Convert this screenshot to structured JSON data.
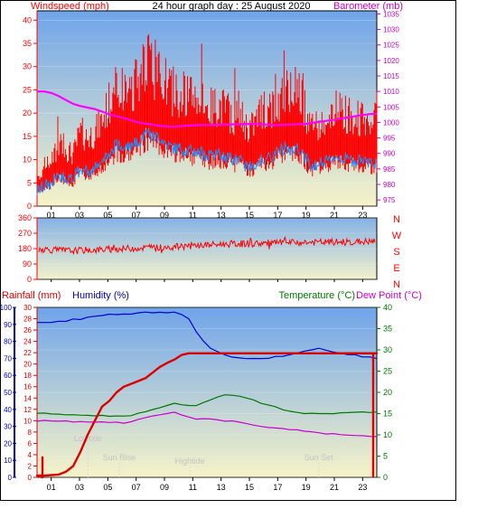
{
  "header": {
    "title": "24 hour graph day : 25 August 2020",
    "left_label": "Windspeed (mph)",
    "right_label": "Barometer (mb)"
  },
  "colors": {
    "wind": "#ff0000",
    "gust_avg": "#1e90ff",
    "barometer": "#ff00ff",
    "rain": "#dd0000",
    "humidity": "#0000cc",
    "temperature": "#007700",
    "dewpoint": "#cc00cc",
    "bg_top": "#6fa4ea",
    "bg_bottom": "#f6f3c8"
  },
  "chart_data": [
    {
      "type": "line",
      "name": "wind-barometer",
      "x_ticks": [
        "01",
        "03",
        "05",
        "07",
        "09",
        "11",
        "13",
        "15",
        "17",
        "19",
        "21",
        "23"
      ],
      "ylabel": "Windspeed (mph)",
      "ylim": [
        0,
        42
      ],
      "y_ticks": [
        0,
        5,
        10,
        15,
        20,
        25,
        30,
        35,
        40
      ],
      "y2label": "Barometer (mb)",
      "y2lim": [
        973,
        1036
      ],
      "y2_ticks": [
        975,
        980,
        985,
        990,
        995,
        1000,
        1005,
        1010,
        1015,
        1020,
        1025,
        1030,
        1035
      ],
      "series": [
        {
          "name": "Windspeed",
          "values": [
            5,
            7,
            8,
            11,
            10,
            9,
            13,
            12,
            13,
            15,
            18,
            21,
            20,
            21,
            22,
            26,
            24,
            24,
            21,
            20,
            20,
            19,
            19,
            18,
            17,
            18,
            17,
            16,
            16,
            14,
            14,
            17,
            16,
            18,
            20,
            20,
            21,
            17,
            14,
            15,
            15,
            17,
            17,
            16,
            16,
            15,
            15,
            15
          ]
        },
        {
          "name": "Barometer",
          "values": [
            1010,
            1010,
            1009.5,
            1008.5,
            1007.2,
            1006,
            1005.3,
            1004.8,
            1004.3,
            1003.5,
            1002.6,
            1002,
            1001.4,
            1000.7,
            1000,
            999.6,
            999.3,
            998.8,
            998.7,
            998.6,
            998.8,
            999,
            999.1,
            999.2,
            999.2,
            999.2,
            999.3,
            999.4,
            999.4,
            999.5,
            999.5,
            999.4,
            999.3,
            999.1,
            999.2,
            999.3,
            999.4,
            999.5,
            999.8,
            1000.2,
            1000.5,
            1000.8,
            1001.2,
            1001.6,
            1002,
            1002.4,
            1002.7,
            1002.8
          ]
        }
      ]
    },
    {
      "type": "line",
      "name": "wind-direction",
      "x_ticks": [
        "01",
        "03",
        "05",
        "07",
        "09",
        "11",
        "13",
        "15",
        "17",
        "19",
        "21",
        "23"
      ],
      "ylim": [
        0,
        360
      ],
      "y_ticks": [
        0,
        90,
        180,
        270,
        360
      ],
      "direction_labels": [
        "N",
        "W",
        "S",
        "E",
        "N"
      ],
      "series": [
        {
          "name": "Direction",
          "values": [
            178,
            176,
            172,
            170,
            168,
            168,
            170,
            172,
            172,
            174,
            176,
            178,
            180,
            182,
            184,
            184,
            185,
            186,
            188,
            190,
            192,
            195,
            198,
            200,
            202,
            204,
            206,
            207,
            208,
            209,
            210,
            211,
            212,
            213,
            214,
            215,
            215,
            216,
            216,
            217,
            217,
            218,
            218,
            219,
            219,
            220,
            220,
            220
          ]
        }
      ]
    },
    {
      "type": "line",
      "name": "rain-humidity-temperature",
      "x_ticks": [
        "01",
        "03",
        "05",
        "07",
        "09",
        "11",
        "13",
        "15",
        "17",
        "19",
        "21",
        "23"
      ],
      "y_left_label_rain": "Rainfall (mm)",
      "y_left_label_humidity": "Humidity (%)",
      "y_right_label_temperature": "Temperature (°C)",
      "y_right_label_dewpoint": "Dew Point (°C)",
      "humidity_lim": [
        0,
        100
      ],
      "humidity_ticks": [
        0,
        10,
        20,
        30,
        40,
        50,
        60,
        70,
        80,
        90,
        100
      ],
      "rain_lim": [
        0,
        30
      ],
      "rain_ticks": [
        0,
        2,
        4,
        6,
        8,
        10,
        12,
        14,
        16,
        18,
        20,
        22,
        24,
        26,
        28,
        30
      ],
      "temp_lim": [
        0,
        40
      ],
      "temp_ticks": [
        0,
        5,
        10,
        15,
        20,
        25,
        30,
        35,
        40
      ],
      "annotations": [
        "Lowtide",
        "Sun Rise",
        "Hightide",
        "Sun Set"
      ],
      "series": [
        {
          "name": "Humidity",
          "values": [
            91,
            91,
            91,
            92,
            92,
            93,
            93,
            94,
            95,
            95,
            96,
            96,
            96,
            96,
            97,
            97,
            97,
            97,
            97,
            97,
            96,
            93,
            86,
            80,
            76,
            74,
            72,
            71,
            70,
            70,
            70,
            70,
            70,
            71,
            71,
            72,
            73,
            74,
            75,
            76,
            75,
            74,
            73,
            72,
            72,
            71,
            71,
            70
          ]
        },
        {
          "name": "Rainfall",
          "values": [
            0.3,
            0.3,
            0.4,
            0.5,
            1.0,
            2.0,
            4.5,
            7.5,
            10.0,
            12.5,
            13.5,
            15.0,
            16.0,
            16.5,
            17.0,
            17.5,
            18.5,
            19.5,
            20.2,
            20.8,
            21.6,
            21.9,
            21.9,
            21.9,
            21.9,
            21.9,
            21.9,
            21.9,
            21.9,
            21.9,
            21.9,
            21.9,
            21.9,
            21.9,
            21.9,
            21.9,
            21.9,
            21.9,
            21.9,
            21.9,
            21.9,
            21.9,
            21.9,
            21.9,
            21.9,
            21.9,
            21.9,
            21.9
          ]
        },
        {
          "name": "Temperature",
          "values": [
            15,
            15,
            15,
            14.8,
            14.8,
            14.8,
            14.6,
            14.6,
            14.5,
            14.5,
            14.4,
            14.4,
            14.3,
            14.6,
            15,
            15.5,
            16,
            16.5,
            17,
            17.5,
            17.2,
            17,
            16.9,
            17.5,
            18.2,
            19,
            19.5,
            19.2,
            19,
            18.7,
            18.2,
            17.5,
            17,
            16.5,
            16,
            15.5,
            15.3,
            15,
            15,
            15,
            15,
            15,
            15.2,
            15.2,
            15.2,
            15.3,
            15.3,
            15.3
          ]
        },
        {
          "name": "Dew Point",
          "values": [
            13.3,
            13.3,
            13.3,
            13.2,
            13.2,
            13.1,
            13.1,
            13.0,
            13.0,
            13.0,
            12.9,
            12.9,
            12.8,
            13.2,
            13.6,
            14.0,
            14.4,
            14.8,
            15.0,
            15.3,
            14.8,
            14.3,
            13.7,
            13.8,
            13.7,
            13.5,
            13.3,
            13.2,
            13.0,
            12.7,
            12.4,
            12.0,
            11.8,
            11.6,
            11.4,
            11.2,
            11.1,
            10.9,
            10.7,
            10.5,
            10.3,
            10.2,
            10.0,
            9.9,
            9.8,
            9.7,
            9.7,
            9.6
          ]
        }
      ]
    }
  ]
}
